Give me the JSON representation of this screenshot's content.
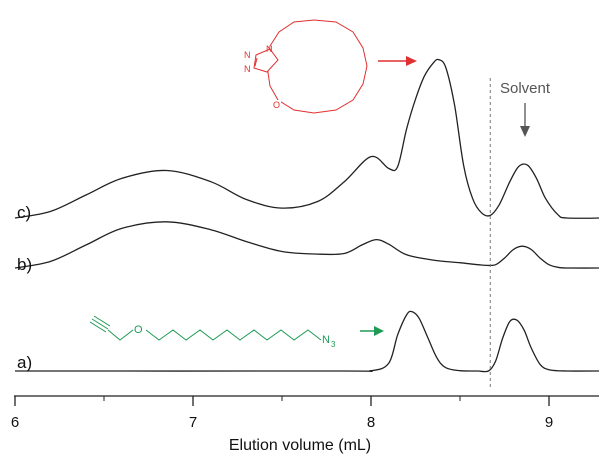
{
  "chart_data": {
    "type": "line",
    "title": "",
    "xlabel": "Elution volume (mL)",
    "ylabel": "",
    "xlim": [
      6,
      9.3
    ],
    "xticks": [
      6,
      7,
      8,
      9
    ],
    "grid": false,
    "legend": "none",
    "series": [
      {
        "name": "a)",
        "color": "#222222",
        "x": [
          6.0,
          7.8,
          8.0,
          8.1,
          8.15,
          8.2,
          8.23,
          8.27,
          8.32,
          8.37,
          8.42,
          8.5,
          8.6,
          8.66,
          8.7,
          8.74,
          8.78,
          8.82,
          8.86,
          8.9,
          8.95,
          9.0,
          9.1,
          9.3
        ],
        "y": [
          0,
          0,
          0.005,
          0.12,
          0.55,
          0.85,
          0.9,
          0.8,
          0.5,
          0.2,
          0.05,
          0.005,
          0,
          0,
          0.15,
          0.5,
          0.75,
          0.77,
          0.62,
          0.35,
          0.1,
          0.02,
          0,
          0
        ]
      },
      {
        "name": "b)",
        "color": "#222222",
        "x": [
          6.0,
          6.2,
          6.4,
          6.6,
          6.85,
          7.1,
          7.3,
          7.5,
          7.7,
          7.85,
          7.95,
          8.03,
          8.1,
          8.2,
          8.35,
          8.5,
          8.6,
          8.65,
          8.7,
          8.75,
          8.8,
          8.85,
          8.9,
          8.95,
          9.0,
          9.05,
          9.1,
          9.3
        ],
        "y": [
          0,
          0.1,
          0.35,
          0.6,
          0.7,
          0.58,
          0.4,
          0.25,
          0.21,
          0.22,
          0.35,
          0.43,
          0.36,
          0.2,
          0.12,
          0.08,
          0.05,
          0.04,
          0.05,
          0.15,
          0.28,
          0.33,
          0.28,
          0.15,
          0.05,
          0.01,
          0,
          0
        ]
      },
      {
        "name": "c)",
        "color": "#222222",
        "x": [
          6.0,
          6.2,
          6.4,
          6.6,
          6.85,
          7.1,
          7.3,
          7.5,
          7.7,
          7.85,
          8.0,
          8.1,
          8.15,
          8.2,
          8.25,
          8.3,
          8.35,
          8.38,
          8.42,
          8.47,
          8.52,
          8.57,
          8.62,
          8.67,
          8.72,
          8.78,
          8.83,
          8.88,
          8.93,
          8.98,
          9.05,
          9.1,
          9.3
        ],
        "y": [
          0,
          0.1,
          0.35,
          0.6,
          0.72,
          0.55,
          0.28,
          0.15,
          0.25,
          0.55,
          0.93,
          0.75,
          0.78,
          1.35,
          1.8,
          2.15,
          2.35,
          2.4,
          2.28,
          1.7,
          0.8,
          0.3,
          0.08,
          0.04,
          0.2,
          0.55,
          0.78,
          0.8,
          0.6,
          0.3,
          0.05,
          0,
          0
        ]
      }
    ],
    "annotations": {
      "solvent_label": "Solvent",
      "solvent_line_x": 8.67,
      "structure_c_atoms": {
        "n1": "N",
        "n2": "N",
        "n3": "N",
        "o": "O"
      },
      "structure_a_atoms": {
        "o": "O",
        "n": "N",
        "sub": "3"
      },
      "colors": {
        "structure_c": "#e03030",
        "structure_a": "#1f9a55",
        "solvent": "#555555"
      }
    }
  }
}
